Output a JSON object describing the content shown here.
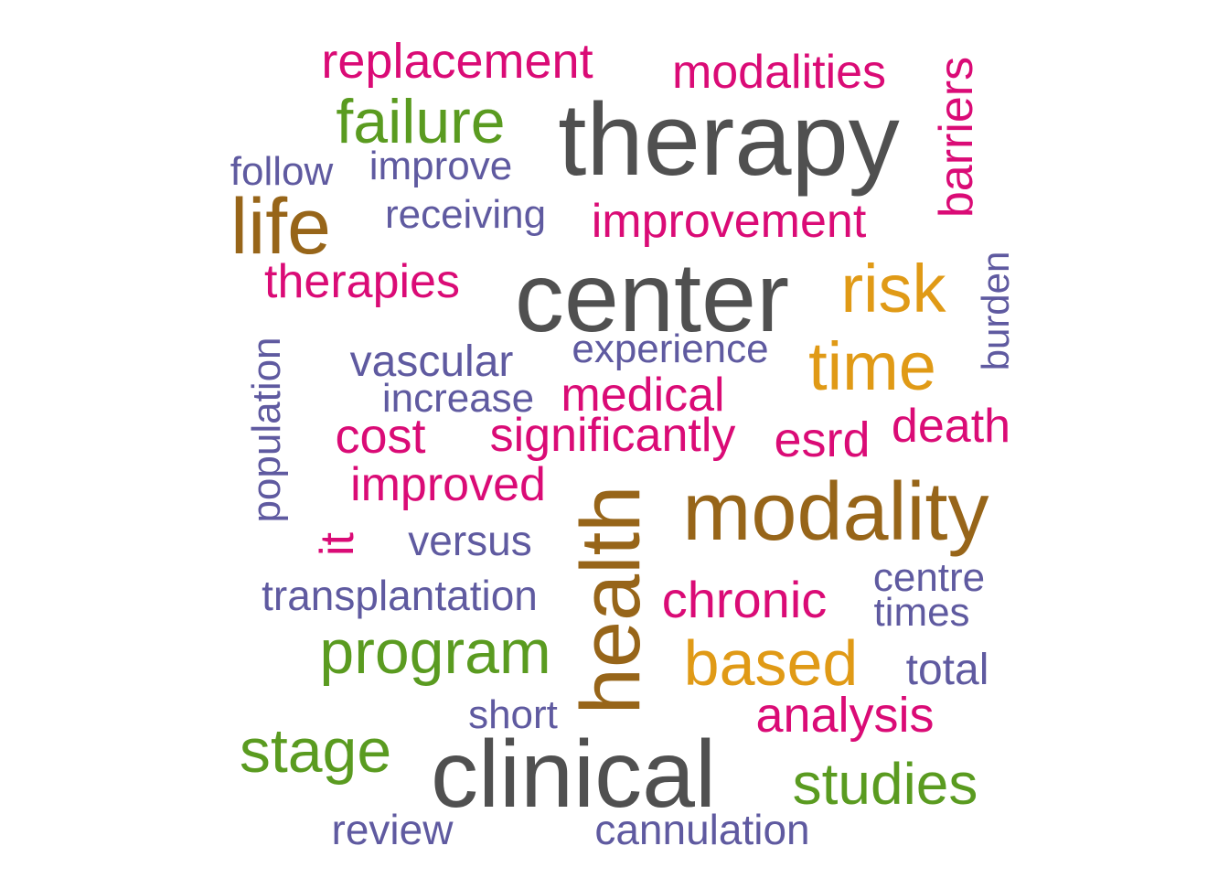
{
  "palette": {
    "gray": "#505050",
    "brown": "#976519",
    "orange": "#e09a16",
    "green": "#5a9b20",
    "magenta": "#da0b76",
    "purple": "#5f5aa0"
  },
  "words": [
    {
      "text": "therapy",
      "color": "gray"
    },
    {
      "text": "center",
      "color": "gray"
    },
    {
      "text": "clinical",
      "color": "gray"
    },
    {
      "text": "modality",
      "color": "brown"
    },
    {
      "text": "health",
      "color": "brown"
    },
    {
      "text": "life",
      "color": "brown"
    },
    {
      "text": "risk",
      "color": "orange"
    },
    {
      "text": "time",
      "color": "orange"
    },
    {
      "text": "based",
      "color": "orange"
    },
    {
      "text": "failure",
      "color": "green"
    },
    {
      "text": "program",
      "color": "green"
    },
    {
      "text": "stage",
      "color": "green"
    },
    {
      "text": "studies",
      "color": "green"
    },
    {
      "text": "replacement",
      "color": "magenta"
    },
    {
      "text": "modalities",
      "color": "magenta"
    },
    {
      "text": "barriers",
      "color": "magenta"
    },
    {
      "text": "improvement",
      "color": "magenta"
    },
    {
      "text": "therapies",
      "color": "magenta"
    },
    {
      "text": "medical",
      "color": "magenta"
    },
    {
      "text": "cost",
      "color": "magenta"
    },
    {
      "text": "significantly",
      "color": "magenta"
    },
    {
      "text": "esrd",
      "color": "magenta"
    },
    {
      "text": "death",
      "color": "magenta"
    },
    {
      "text": "improved",
      "color": "magenta"
    },
    {
      "text": "it",
      "color": "magenta"
    },
    {
      "text": "chronic",
      "color": "magenta"
    },
    {
      "text": "analysis",
      "color": "magenta"
    },
    {
      "text": "follow",
      "color": "purple"
    },
    {
      "text": "improve",
      "color": "purple"
    },
    {
      "text": "receiving",
      "color": "purple"
    },
    {
      "text": "burden",
      "color": "purple"
    },
    {
      "text": "population",
      "color": "purple"
    },
    {
      "text": "vascular",
      "color": "purple"
    },
    {
      "text": "experience",
      "color": "purple"
    },
    {
      "text": "increase",
      "color": "purple"
    },
    {
      "text": "versus",
      "color": "purple"
    },
    {
      "text": "transplantation",
      "color": "purple"
    },
    {
      "text": "centre",
      "color": "purple"
    },
    {
      "text": "times",
      "color": "purple"
    },
    {
      "text": "total",
      "color": "purple"
    },
    {
      "text": "short",
      "color": "purple"
    },
    {
      "text": "review",
      "color": "purple"
    },
    {
      "text": "cannulation",
      "color": "purple"
    }
  ]
}
